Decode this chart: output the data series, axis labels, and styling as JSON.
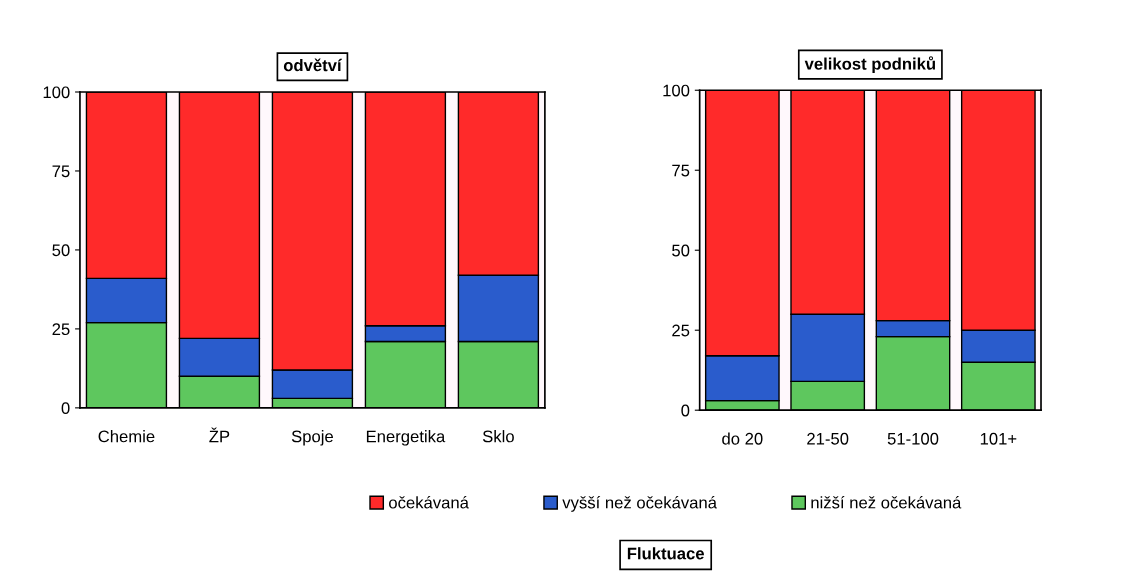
{
  "chart_data": [
    {
      "type": "bar",
      "title": "odvětví",
      "stacked": true,
      "categories": [
        "Chemie",
        "ŽP",
        "Spoje",
        "Energetika",
        "Sklo"
      ],
      "ylim": [
        0,
        100
      ],
      "yticks": [
        0,
        25,
        50,
        75,
        100
      ],
      "legend": "bottom",
      "series": [
        {
          "name": "nižší než očekávaná",
          "color": "#5ec75e",
          "values": [
            27,
            10,
            3,
            21,
            21
          ]
        },
        {
          "name": "vyšší než očekávaná",
          "color": "#2a5ccc",
          "values": [
            14,
            12,
            9,
            5,
            21
          ]
        },
        {
          "name": "očekávaná",
          "color": "#ff2a2a",
          "values": [
            59,
            78,
            88,
            74,
            58
          ]
        }
      ]
    },
    {
      "type": "bar",
      "title": "velikost podniků",
      "stacked": true,
      "categories": [
        "do 20",
        "21-50",
        "51-100",
        "101+"
      ],
      "ylim": [
        0,
        100
      ],
      "yticks": [
        0,
        25,
        50,
        75,
        100
      ],
      "annotations": [
        "Fluktuace"
      ],
      "series": [
        {
          "color": "#5ec75e",
          "values": [
            3,
            9,
            23,
            15
          ]
        },
        {
          "color": "#2a5ccc",
          "values": [
            14,
            21,
            5,
            10
          ]
        },
        {
          "color": "#ff2a2a",
          "values": [
            83,
            70,
            72,
            75
          ]
        }
      ]
    }
  ]
}
